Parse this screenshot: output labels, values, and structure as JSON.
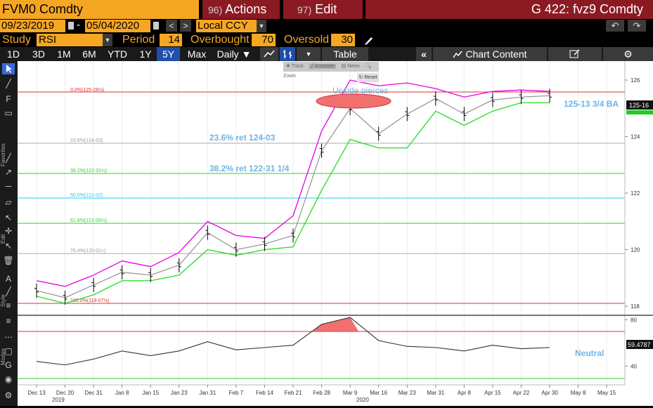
{
  "header": {
    "ticker": "FVM0 Comdty",
    "actions_num": "96)",
    "actions_label": "Actions",
    "edit_num": "97)",
    "edit_label": "Edit",
    "title": "G 422: fvz9 Comdty"
  },
  "range": {
    "start": "09/23/2019",
    "sep": "-",
    "end": "05/04/2020",
    "prev": "<",
    "next": ">",
    "currency": "Local CCY",
    "undo": "↶",
    "redo": "↷"
  },
  "study": {
    "label": "Study",
    "value": "RSI",
    "period_label": "Period",
    "period": "14",
    "overbought_label": "Overbought",
    "overbought": "70",
    "oversold_label": "Oversold",
    "oversold": "30"
  },
  "toolbar": {
    "periods": [
      "1D",
      "3D",
      "1M",
      "6M",
      "YTD",
      "1Y",
      "5Y",
      "Max"
    ],
    "selected": "5Y",
    "interval": "Daily ▼",
    "table": "Table",
    "collapse": "«",
    "chart_content": "Chart Content",
    "gear": "⚙"
  },
  "overlay": {
    "track": "Track",
    "annotate": "Annotate",
    "news": "News",
    "zoom": "Zoom",
    "reset": "Reset"
  },
  "annotations": {
    "upside": "Upside pierces",
    "ret236": "23.6% ret 124-03",
    "ret382": "38.2% ret 122-31 1/4",
    "ba": "125-13 3/4 BA",
    "neutral": "Neutral"
  },
  "fib_labels": {
    "f0": "0.0%(125-28½)",
    "f236": "23.6%(124-03)",
    "f382": "38.2%(122-31½)",
    "f500": "50.0%(122-02)",
    "f618": "61.8%(121-06½)",
    "f764": "76.4%(120-01+)",
    "f100": "100.0%(118-07½)"
  },
  "price_axis": {
    "ticks": [
      "126",
      "124",
      "122",
      "120",
      "118"
    ],
    "last": "125-16"
  },
  "rsi_axis": {
    "ticks": [
      "80",
      "40"
    ],
    "last": "59.4787"
  },
  "x_axis": {
    "labels": [
      "Dec 13",
      "Dec 20",
      "Dec 31",
      "Jan 8",
      "Jan 15",
      "Jan 23",
      "Jan 31",
      "Feb 7",
      "Feb 14",
      "Feb 21",
      "Feb 28",
      "Mar 9",
      "Mar 16",
      "Mar 23",
      "Mar 31",
      "Apr 8",
      "Apr 15",
      "Apr 22",
      "Apr 30",
      "May 8",
      "May 15"
    ],
    "year1": "2019",
    "year2": "2020"
  },
  "sidebar_labels": {
    "favorites": "Favorites",
    "edit": "Edit",
    "style": "Style",
    "modes": "Modes"
  },
  "colors": {
    "accent": "#f5a623",
    "header_red": "#8b1a22",
    "selected_tab": "#1f4fa8",
    "upper_band": "#e600e6",
    "lower_band": "#22dd22",
    "mid_band": "#999999",
    "fib_red": "#e03030",
    "fib_green": "#33cc33",
    "fib_cyan": "#22ccee",
    "fib_gray": "#aaaaaa",
    "annotation_blue": "#6fb3e6"
  },
  "chart_data": [
    {
      "type": "line",
      "title": "",
      "xlabel": "",
      "ylabel": "",
      "x": [
        "Dec 13",
        "Dec 20",
        "Dec 31",
        "Jan 8",
        "Jan 15",
        "Jan 23",
        "Jan 31",
        "Feb 7",
        "Feb 14",
        "Feb 21",
        "Feb 28",
        "Mar 9",
        "Mar 16",
        "Mar 23",
        "Mar 31",
        "Apr 8",
        "Apr 15",
        "Apr 22",
        "Apr 30"
      ],
      "ylim": [
        117.9,
        126.4
      ],
      "series": [
        {
          "values": [
            118.55,
            118.3,
            118.75,
            119.2,
            119.1,
            119.45,
            120.6,
            120.0,
            120.2,
            120.5,
            123.5,
            125.0,
            124.1,
            124.8,
            125.35,
            124.8,
            125.3,
            125.4,
            125.45
          ]
        },
        {
          "values": [
            118.9,
            118.7,
            119.1,
            119.6,
            119.4,
            119.9,
            121.0,
            120.5,
            120.4,
            121.2,
            124.2,
            126.0,
            125.8,
            125.9,
            125.7,
            125.4,
            125.6,
            125.65,
            125.6
          ]
        },
        {
          "values": [
            118.35,
            118.1,
            118.4,
            118.9,
            118.9,
            119.1,
            120.0,
            119.8,
            120.0,
            120.1,
            122.1,
            123.9,
            123.6,
            123.6,
            124.9,
            124.4,
            124.9,
            125.2,
            125.2
          ]
        }
      ]
    },
    {
      "type": "line",
      "title": "",
      "x": [
        "Dec 13",
        "Dec 20",
        "Dec 31",
        "Jan 8",
        "Jan 15",
        "Jan 23",
        "Jan 31",
        "Feb 7",
        "Feb 14",
        "Feb 21",
        "Feb 28",
        "Mar 9",
        "Mar 16",
        "Mar 23",
        "Mar 31",
        "Apr 8",
        "Apr 15",
        "Apr 22",
        "Apr 30"
      ],
      "ylim": [
        25,
        82
      ],
      "series": [
        {
          "values": [
            44,
            41,
            46,
            53,
            49,
            53,
            61,
            54,
            56,
            58,
            76,
            82,
            62,
            57,
            56,
            53,
            58,
            55,
            56
          ]
        }
      ]
    }
  ]
}
